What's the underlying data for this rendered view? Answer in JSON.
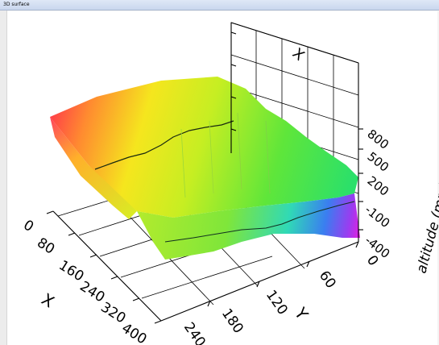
{
  "window": {
    "title": "3D surface"
  },
  "chart_data": {
    "type": "surface3d",
    "title": "",
    "colormap": "rainbow",
    "x_axis": {
      "label": "X",
      "ticks": [
        "0",
        "80",
        "160",
        "240",
        "320",
        "400"
      ]
    },
    "y_axis": {
      "label": "Y",
      "ticks": [
        "0",
        "60",
        "120",
        "180",
        "240"
      ]
    },
    "z_axis": {
      "label": "altitude (mm)",
      "ticks": [
        "-400",
        "-100",
        "200",
        "500",
        "800"
      ]
    },
    "back_wall_label": "X",
    "grid": true
  }
}
